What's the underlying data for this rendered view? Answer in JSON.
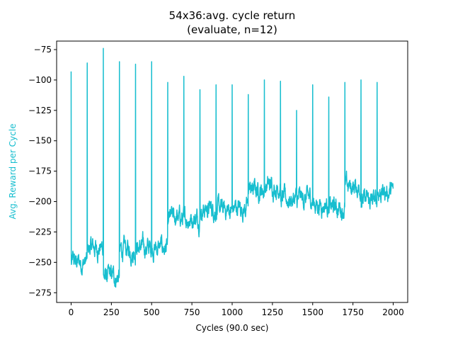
{
  "chart_data": {
    "type": "line",
    "title": "54x36:avg. cycle return",
    "subtitle": "(evaluate, n=12)",
    "xlabel": "Cycles (90.0 sec)",
    "ylabel": "Avg. Reward per Cycle",
    "xlim": [
      -90,
      2090
    ],
    "ylim": [
      -283,
      -68
    ],
    "xticks": [
      0,
      250,
      500,
      750,
      1000,
      1250,
      1500,
      1750,
      2000
    ],
    "yticks": [
      -275,
      -250,
      -225,
      -200,
      -175,
      -150,
      -125,
      -100,
      -75
    ],
    "grid": false,
    "color": "#17becf",
    "segments": [
      {
        "x0": 0,
        "x1": 100,
        "base": -250,
        "peak": -93
      },
      {
        "x0": 100,
        "x1": 200,
        "base": -238,
        "peak": -86
      },
      {
        "x0": 200,
        "x1": 300,
        "base": -262,
        "peak": -74
      },
      {
        "x0": 300,
        "x1": 400,
        "base": -240,
        "peak": -85
      },
      {
        "x0": 400,
        "x1": 500,
        "base": -238,
        "peak": -87
      },
      {
        "x0": 500,
        "x1": 600,
        "base": -238,
        "peak": -85
      },
      {
        "x0": 600,
        "x1": 700,
        "base": -214,
        "peak": -102
      },
      {
        "x0": 700,
        "x1": 800,
        "base": -213,
        "peak": -97
      },
      {
        "x0": 800,
        "x1": 900,
        "base": -206,
        "peak": -108
      },
      {
        "x0": 900,
        "x1": 1000,
        "base": -207,
        "peak": -104
      },
      {
        "x0": 1000,
        "x1": 1100,
        "base": -205,
        "peak": -104
      },
      {
        "x0": 1100,
        "x1": 1200,
        "base": -190,
        "peak": -112
      },
      {
        "x0": 1200,
        "x1": 1300,
        "base": -187,
        "peak": -100
      },
      {
        "x0": 1300,
        "x1": 1400,
        "base": -198,
        "peak": -101
      },
      {
        "x0": 1400,
        "x1": 1500,
        "base": -198,
        "peak": -125
      },
      {
        "x0": 1500,
        "x1": 1600,
        "base": -202,
        "peak": -104
      },
      {
        "x0": 1600,
        "x1": 1700,
        "base": -205,
        "peak": -114
      },
      {
        "x0": 1700,
        "x1": 1800,
        "base": -188,
        "peak": -102
      },
      {
        "x0": 1800,
        "x1": 1900,
        "base": -200,
        "peak": -100
      },
      {
        "x0": 1900,
        "x1": 2000,
        "base": -192,
        "peak": -102
      }
    ]
  }
}
